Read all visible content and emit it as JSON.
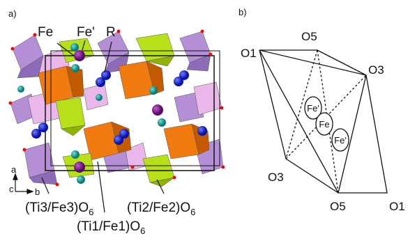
{
  "panel_a": {
    "label": "a)",
    "atoms": {
      "fe": "Fe",
      "fe_prime": "Fe'",
      "r": "R"
    },
    "axes": {
      "a": "a",
      "c": "c",
      "b": "b"
    },
    "polyhedra": [
      {
        "formula": "(Ti3/Fe3)O",
        "sub": "6"
      },
      {
        "formula": "(Ti2/Fe2)O",
        "sub": "6"
      },
      {
        "formula": "(Ti1/Fe1)O",
        "sub": "6"
      }
    ]
  },
  "panel_b": {
    "label": "b)",
    "vertices": [
      "O1",
      "O5",
      "O3",
      "O3",
      "O5",
      "O1"
    ],
    "sites": [
      "Fe'",
      "Fe",
      "Fe'"
    ]
  }
}
